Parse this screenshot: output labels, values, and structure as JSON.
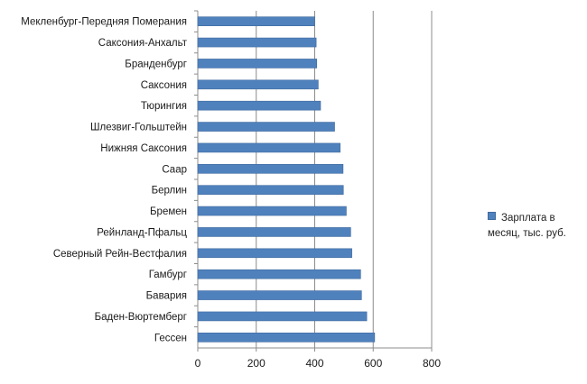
{
  "chart_data": {
    "type": "bar",
    "orientation": "horizontal",
    "categories": [
      "Мекленбург-Передняя Померания",
      "Саксония-Анхальт",
      "Бранденбург",
      "Саксония",
      "Тюрингия",
      "Шлезвиг-Гольштейн",
      "Нижняя Саксония",
      "Саар",
      "Берлин",
      "Бремен",
      "Рейнланд-Пфальц",
      "Северный Рейн-Вестфалия",
      "Гамбург",
      "Бавария",
      "Баден-Вюртемберг",
      "Гессен"
    ],
    "series": [
      {
        "name": "Зарплата в месяц, тыс. руб.",
        "values": [
          400,
          405,
          407,
          412,
          420,
          468,
          487,
          497,
          498,
          508,
          523,
          527,
          557,
          560,
          578,
          605
        ],
        "color": "#4f81bd"
      }
    ],
    "xlim": [
      0,
      800
    ],
    "xticks": [
      0,
      200,
      400,
      600,
      800
    ],
    "grid": "vertical",
    "legend": "right",
    "title": "",
    "xlabel": "",
    "ylabel": ""
  }
}
